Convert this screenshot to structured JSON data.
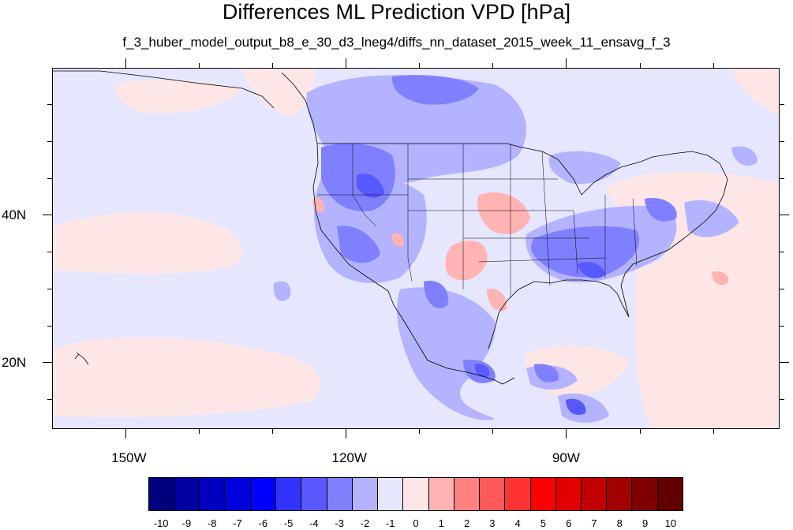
{
  "title": "Differences ML Prediction VPD [hPa]",
  "subtitle": "f_3_huber_model_output_b8_e_30_d3_lneg4/diffs_nn_dataset_2015_week_11_ensavg_f_3",
  "map": {
    "lon_range": [
      -160,
      -61
    ],
    "lat_range": [
      11,
      60
    ],
    "x_ticks": [
      {
        "lon": -150,
        "label": "150W"
      },
      {
        "lon": -120,
        "label": "120W"
      },
      {
        "lon": -90,
        "label": "90W"
      }
    ],
    "y_ticks": [
      {
        "lat": 40,
        "label": "40N"
      },
      {
        "lat": 20,
        "label": "20N"
      }
    ]
  },
  "colorbar": {
    "colors": [
      "#00007f",
      "#0000a0",
      "#0000c0",
      "#0000df",
      "#0000ff",
      "#3333ff",
      "#5858ff",
      "#8080ff",
      "#b3b3ff",
      "#e6e6ff",
      "#ffe6e6",
      "#ffb3b3",
      "#ff8080",
      "#ff5858",
      "#ff3333",
      "#ff0000",
      "#e00000",
      "#c00000",
      "#a00000",
      "#7f0000",
      "#600000"
    ],
    "labels": [
      "-10",
      "-9",
      "-8",
      "-7",
      "-6",
      "-5",
      "-4",
      "-3",
      "-2",
      "-1",
      "0",
      "1",
      "2",
      "3",
      "4",
      "5",
      "6",
      "7",
      "8",
      "9",
      "10"
    ]
  },
  "legend_colors": {
    "background": "#e6e6ff",
    "weak_negative": "#b3b3ff",
    "moderate_negative": "#8080ff",
    "strong_negative": "#5858ff",
    "weak_positive": "#ffe6e6",
    "moderate_positive": "#ffb3b3"
  }
}
